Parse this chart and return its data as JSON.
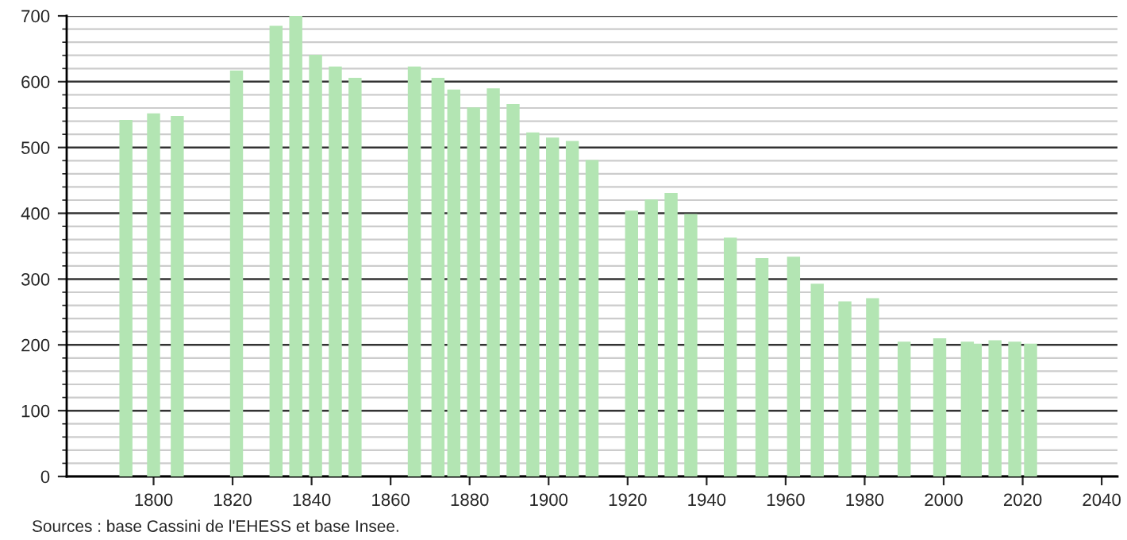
{
  "chart_data": {
    "type": "bar",
    "x": [
      1793,
      1800,
      1806,
      1821,
      1831,
      1836,
      1841,
      1846,
      1851,
      1866,
      1872,
      1876,
      1881,
      1886,
      1891,
      1896,
      1901,
      1906,
      1911,
      1921,
      1926,
      1931,
      1936,
      1946,
      1954,
      1962,
      1968,
      1975,
      1982,
      1990,
      1999,
      2006,
      2008,
      2013,
      2018,
      2022
    ],
    "values": [
      542,
      552,
      548,
      617,
      685,
      700,
      641,
      623,
      606,
      623,
      606,
      588,
      561,
      590,
      566,
      523,
      515,
      510,
      481,
      404,
      421,
      431,
      399,
      363,
      332,
      334,
      293,
      266,
      271,
      205,
      210,
      205,
      202,
      207,
      205,
      202
    ],
    "color": "#b3e5b3",
    "xlim": [
      1778,
      2044
    ],
    "xticks": [
      1800,
      1820,
      1840,
      1860,
      1880,
      1900,
      1920,
      1940,
      1960,
      1980,
      2000,
      2020,
      2040
    ],
    "ylim": [
      0,
      700
    ],
    "yticks": [
      0,
      100,
      200,
      300,
      400,
      500,
      600,
      700
    ],
    "grid": "y",
    "annotations": [
      "Sources : base Cassini de l'EHESS et base Insee."
    ]
  }
}
